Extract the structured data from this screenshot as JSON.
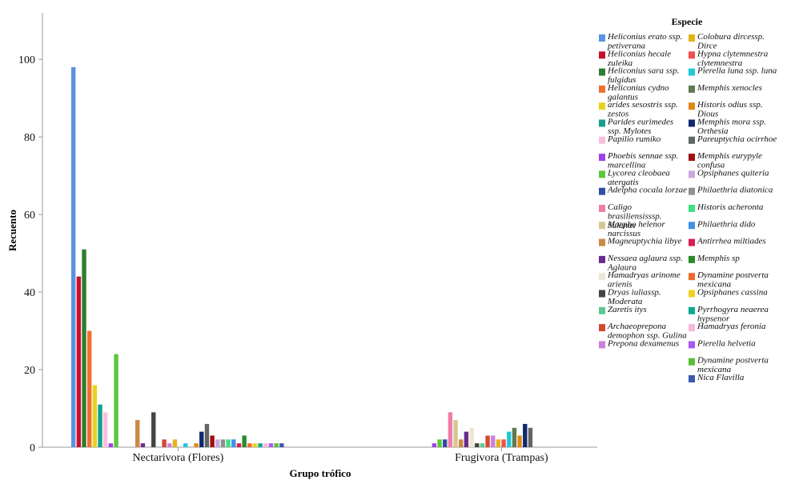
{
  "chart_data": {
    "type": "bar",
    "xlabel": "Grupo trófico",
    "ylabel": "Recuento",
    "ylim": [
      0,
      112
    ],
    "yticks": [
      0,
      20,
      40,
      60,
      80,
      100
    ],
    "grid": false,
    "legend_title": "Especie",
    "legend_position": "right",
    "categories": [
      "Nectarivora (Flores)",
      "Frugivora (Trampas)"
    ],
    "series": [
      {
        "name": "Heliconius erato ssp. petiverana",
        "color": "#5b93de",
        "values": [
          98,
          0
        ]
      },
      {
        "name": "Heliconius hecale zuleika",
        "color": "#c8102e",
        "values": [
          44,
          0
        ]
      },
      {
        "name": "Heliconius sara ssp. fulgidus",
        "color": "#2e7d2e",
        "values": [
          51,
          0
        ]
      },
      {
        "name": "Heliconius cydno galantus",
        "color": "#f07030",
        "values": [
          30,
          0
        ]
      },
      {
        "name": "arides sesostris ssp. zestos",
        "color": "#e8d21c",
        "values": [
          16,
          0
        ]
      },
      {
        "name": "Parides eurimedes ssp. Mylotes",
        "color": "#14a08c",
        "values": [
          11,
          0
        ]
      },
      {
        "name": "Papilio rumiko",
        "color": "#f8c0dc",
        "values": [
          9,
          0
        ]
      },
      {
        "name": "Phoebis sennae ssp. marcellina",
        "color": "#a040e8",
        "values": [
          1,
          1
        ]
      },
      {
        "name": "Lycorea cleobaea atergatis",
        "color": "#5cc83c",
        "values": [
          24,
          2
        ]
      },
      {
        "name": "Adelpha cocala lorzae",
        "color": "#3050a0",
        "values": [
          0,
          2
        ]
      },
      {
        "name": "Caligo brasiliensisssp. Sulanus",
        "color": "#f07cac",
        "values": [
          0,
          9
        ]
      },
      {
        "name": "Morpho helenor narcissus",
        "color": "#d4c890",
        "values": [
          0,
          7
        ]
      },
      {
        "name": "Magneuptychia libye",
        "color": "#cc8844",
        "values": [
          7,
          2
        ]
      },
      {
        "name": "Nessaea aglaura ssp. Aglaura",
        "color": "#6a2c8a",
        "values": [
          1,
          4
        ]
      },
      {
        "name": "Hamadryas arinome arienis",
        "color": "#ece6d2",
        "values": [
          0,
          5
        ]
      },
      {
        "name": "Dryas iuliassp. Moderata",
        "color": "#444444",
        "values": [
          9,
          1
        ]
      },
      {
        "name": "Zaretis itys",
        "color": "#5cc890",
        "values": [
          0,
          1
        ]
      },
      {
        "name": "Archaeoprepona demophon ssp. Gulina",
        "color": "#d44830",
        "values": [
          2,
          3
        ]
      },
      {
        "name": "Prepona dexamenus",
        "color": "#cc80dc",
        "values": [
          1,
          3
        ]
      },
      {
        "name": "Colobura dircessp. Dirce",
        "color": "#e2b41c",
        "values": [
          2,
          2
        ]
      },
      {
        "name": "Hypna clytemnestra clytemnestra",
        "color": "#f05050",
        "values": [
          0,
          2
        ]
      },
      {
        "name": "Pierella luna ssp. luna",
        "color": "#20c8d8",
        "values": [
          1,
          4
        ]
      },
      {
        "name": "Memphis xenocles",
        "color": "#607a50",
        "values": [
          0,
          5
        ]
      },
      {
        "name": "Historis odius ssp. Dious",
        "color": "#e08a14",
        "values": [
          1,
          3
        ]
      },
      {
        "name": "Memphis mora ssp. Orthesia",
        "color": "#102870",
        "values": [
          4,
          6
        ]
      },
      {
        "name": "Pareuptychia ocirrhoe",
        "color": "#606664",
        "values": [
          6,
          5
        ]
      },
      {
        "name": "Memphis eurypyle confusa",
        "color": "#a01010",
        "values": [
          3,
          0
        ]
      },
      {
        "name": "Opsiphanes quiteria",
        "color": "#c8a8e0",
        "values": [
          2,
          0
        ]
      },
      {
        "name": "Philaethria diatonica",
        "color": "#909090",
        "values": [
          2,
          0
        ]
      },
      {
        "name": "Historis acheronta",
        "color": "#40e080",
        "values": [
          2,
          0
        ]
      },
      {
        "name": "Philaethria dido",
        "color": "#4090e8",
        "values": [
          2,
          0
        ]
      },
      {
        "name": "Antirrhea miltiades",
        "color": "#d81e50",
        "values": [
          1,
          0
        ]
      },
      {
        "name": "Memphis sp",
        "color": "#2a8a2a",
        "values": [
          3,
          0
        ]
      },
      {
        "name": "Dynamine postverta mexicana",
        "color": "#f06a28",
        "values": [
          1,
          0
        ]
      },
      {
        "name": "Opsiphanes cassina",
        "color": "#f0d020",
        "values": [
          1,
          0
        ]
      },
      {
        "name": "Pyrrhogyra neaerea hypsenor",
        "color": "#10a890",
        "values": [
          1,
          0
        ]
      },
      {
        "name": "Hamadryas feronia",
        "color": "#f8b8d8",
        "values": [
          1,
          0
        ]
      },
      {
        "name": "Pierella helvetia",
        "color": "#a858f0",
        "values": [
          1,
          0
        ]
      },
      {
        "name": "Dynamine postverta mexicana",
        "color": "#58c038",
        "values": [
          1,
          0
        ]
      },
      {
        "name": "Nica Flavilla",
        "color": "#3c58b0",
        "values": [
          1,
          0
        ]
      }
    ]
  }
}
